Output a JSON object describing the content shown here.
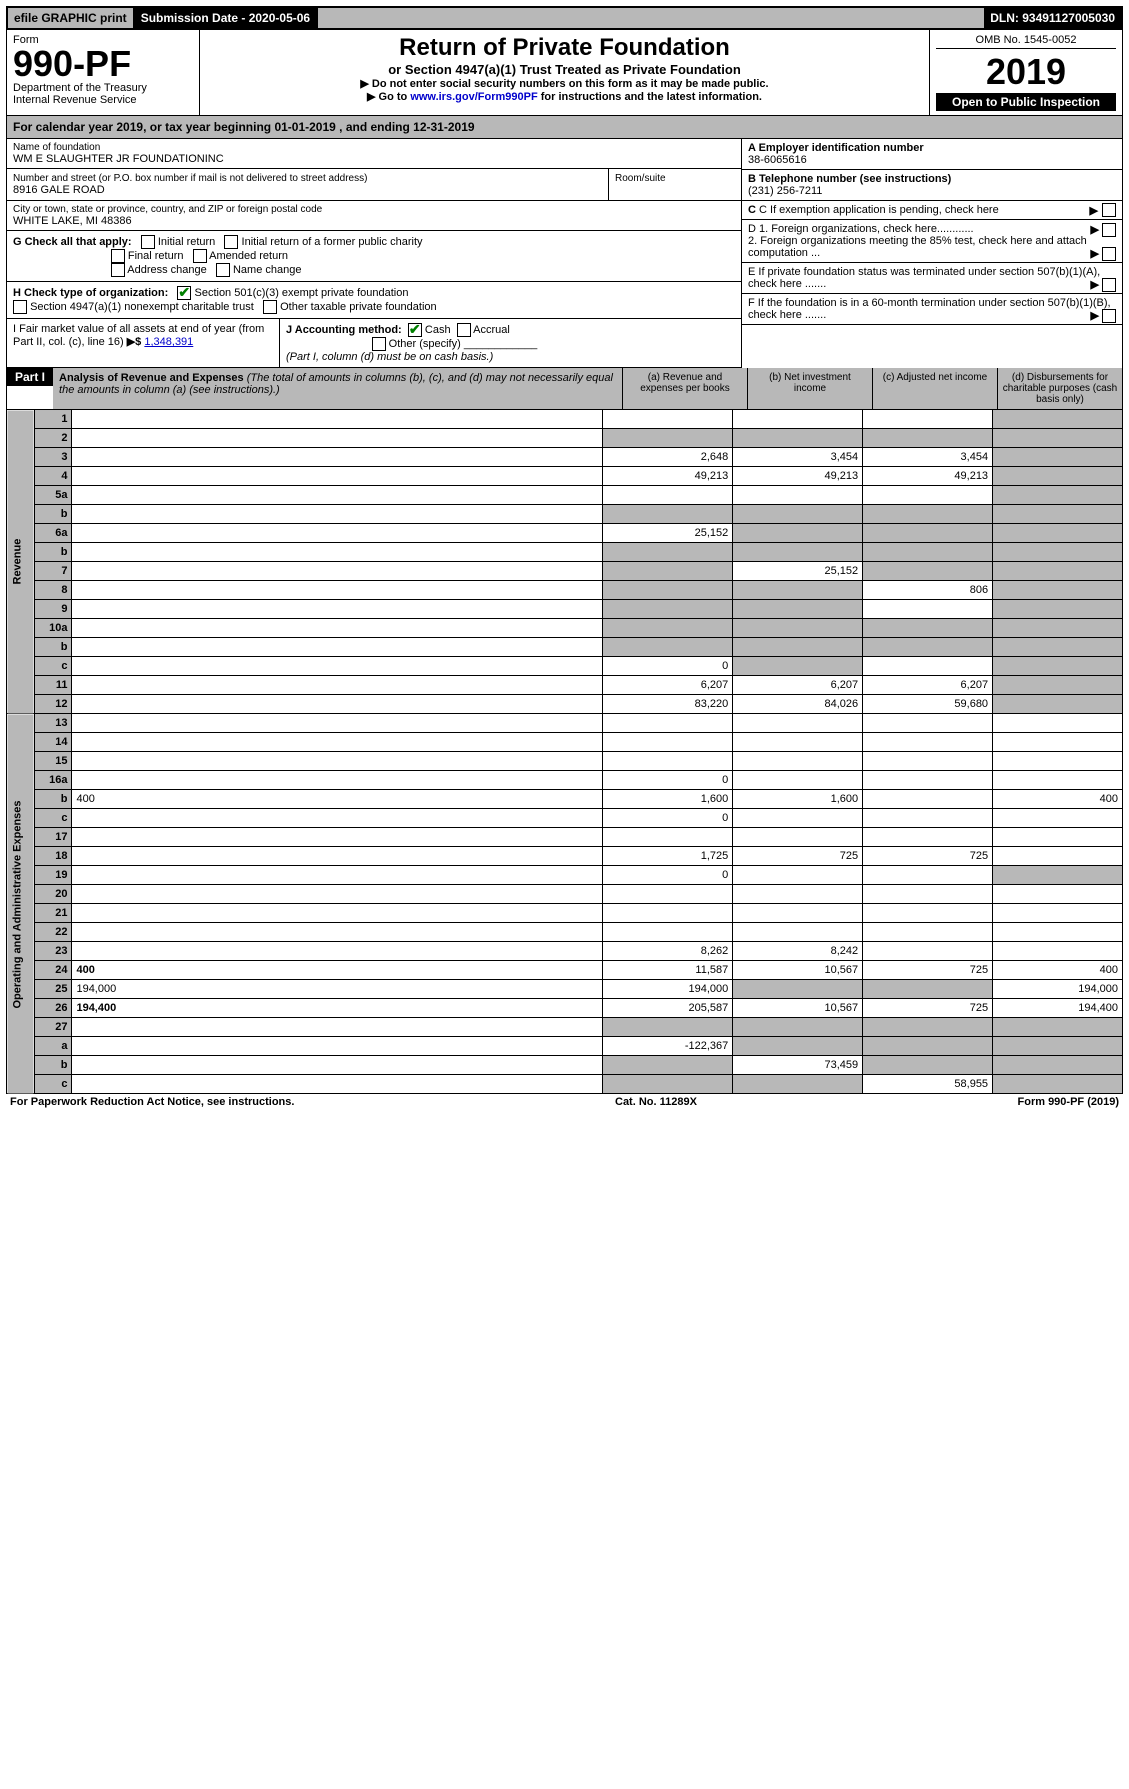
{
  "top": {
    "efile": "efile GRAPHIC print",
    "subdate_label": "Submission Date - 2020-05-06",
    "dln": "DLN: 93491127005030"
  },
  "header": {
    "form_word": "Form",
    "form_no": "990-PF",
    "dept": "Department of the Treasury",
    "irs": "Internal Revenue Service",
    "title": "Return of Private Foundation",
    "subtitle": "or Section 4947(a)(1) Trust Treated as Private Foundation",
    "note1": "▶ Do not enter social security numbers on this form as it may be made public.",
    "note2_pre": "▶ Go to ",
    "note2_link": "www.irs.gov/Form990PF",
    "note2_post": " for instructions and the latest information.",
    "omb": "OMB No. 1545-0052",
    "year": "2019",
    "open": "Open to Public Inspection"
  },
  "cal_year": "For calendar year 2019, or tax year beginning 01-01-2019            , and ending 12-31-2019",
  "info": {
    "name_label": "Name of foundation",
    "name": "WM E SLAUGHTER JR FOUNDATIONINC",
    "addr_label": "Number and street (or P.O. box number if mail is not delivered to street address)",
    "addr": "8916 GALE ROAD",
    "room_label": "Room/suite",
    "city_label": "City or town, state or province, country, and ZIP or foreign postal code",
    "city": "WHITE LAKE, MI  48386",
    "a_label": "A Employer identification number",
    "a_val": "38-6065616",
    "b_label": "B Telephone number (see instructions)",
    "b_val": "(231) 256-7211",
    "c_label": "C If exemption application is pending, check here",
    "d1": "D 1. Foreign organizations, check here............",
    "d2": "2. Foreign organizations meeting the 85% test, check here and attach computation ...",
    "e": "E  If private foundation status was terminated under section 507(b)(1)(A), check here .......",
    "f": "F  If the foundation is in a 60-month termination under section 507(b)(1)(B), check here .......",
    "g_label": "G Check all that apply:",
    "g_opts": [
      "Initial return",
      "Initial return of a former public charity",
      "Final return",
      "Amended return",
      "Address change",
      "Name change"
    ],
    "h_label": "H Check type of organization:",
    "h_opt1": "Section 501(c)(3) exempt private foundation",
    "h_opt2": "Section 4947(a)(1) nonexempt charitable trust",
    "h_opt3": "Other taxable private foundation",
    "i_label": "I Fair market value of all assets at end of year (from Part II, col. (c), line 16)",
    "i_val": "1,348,391",
    "j_label": "J Accounting method:",
    "j_cash": "Cash",
    "j_accrual": "Accrual",
    "j_other": "Other (specify)",
    "j_note": "(Part I, column (d) must be on cash basis.)"
  },
  "part1": {
    "label": "Part I",
    "title": "Analysis of Revenue and Expenses",
    "title_note": "(The total of amounts in columns (b), (c), and (d) may not necessarily equal the amounts in column (a) (see instructions).)",
    "cols": {
      "a": "(a)   Revenue and expenses per books",
      "b": "(b)  Net investment income",
      "c": "(c)  Adjusted net income",
      "d": "(d)  Disbursements for charitable purposes (cash basis only)"
    }
  },
  "sections": {
    "revenue": "Revenue",
    "expenses": "Operating and Administrative Expenses"
  },
  "rows": [
    {
      "n": "1",
      "d": "",
      "a": "",
      "b": "",
      "c": "",
      "shade": [
        "d"
      ]
    },
    {
      "n": "2",
      "d": "",
      "a": "",
      "b": "",
      "c": "",
      "shade": [
        "a",
        "b",
        "c",
        "d"
      ],
      "check": true
    },
    {
      "n": "3",
      "d": "",
      "a": "2,648",
      "b": "3,454",
      "c": "3,454",
      "shade": [
        "d"
      ]
    },
    {
      "n": "4",
      "d": "",
      "a": "49,213",
      "b": "49,213",
      "c": "49,213",
      "shade": [
        "d"
      ]
    },
    {
      "n": "5a",
      "d": "",
      "a": "",
      "b": "",
      "c": "",
      "shade": [
        "d"
      ]
    },
    {
      "n": "b",
      "d": "",
      "a": "",
      "b": "",
      "c": "",
      "shade": [
        "a",
        "b",
        "c",
        "d"
      ]
    },
    {
      "n": "6a",
      "d": "",
      "a": "25,152",
      "b": "",
      "c": "",
      "shade": [
        "b",
        "c",
        "d"
      ]
    },
    {
      "n": "b",
      "d": "",
      "a": "",
      "b": "",
      "c": "",
      "shade": [
        "a",
        "b",
        "c",
        "d"
      ]
    },
    {
      "n": "7",
      "d": "",
      "a": "",
      "b": "25,152",
      "c": "",
      "shade": [
        "a",
        "c",
        "d"
      ]
    },
    {
      "n": "8",
      "d": "",
      "a": "",
      "b": "",
      "c": "806",
      "shade": [
        "a",
        "b",
        "d"
      ]
    },
    {
      "n": "9",
      "d": "",
      "a": "",
      "b": "",
      "c": "",
      "shade": [
        "a",
        "b",
        "d"
      ]
    },
    {
      "n": "10a",
      "d": "",
      "a": "",
      "b": "",
      "c": "",
      "shade": [
        "a",
        "b",
        "c",
        "d"
      ]
    },
    {
      "n": "b",
      "d": "",
      "a": "",
      "b": "",
      "c": "",
      "shade": [
        "a",
        "b",
        "c",
        "d"
      ]
    },
    {
      "n": "c",
      "d": "",
      "a": "0",
      "b": "",
      "c": "",
      "shade": [
        "b",
        "d"
      ]
    },
    {
      "n": "11",
      "d": "",
      "a": "6,207",
      "b": "6,207",
      "c": "6,207",
      "shade": [
        "d"
      ]
    },
    {
      "n": "12",
      "d": "",
      "a": "83,220",
      "b": "84,026",
      "c": "59,680",
      "shade": [
        "d"
      ],
      "bold": true
    }
  ],
  "exp_rows": [
    {
      "n": "13",
      "d": "",
      "a": "",
      "b": "",
      "c": ""
    },
    {
      "n": "14",
      "d": "",
      "a": "",
      "b": "",
      "c": ""
    },
    {
      "n": "15",
      "d": "",
      "a": "",
      "b": "",
      "c": ""
    },
    {
      "n": "16a",
      "d": "",
      "a": "0",
      "b": "",
      "c": ""
    },
    {
      "n": "b",
      "d": "400",
      "a": "1,600",
      "b": "1,600",
      "c": ""
    },
    {
      "n": "c",
      "d": "",
      "a": "0",
      "b": "",
      "c": ""
    },
    {
      "n": "17",
      "d": "",
      "a": "",
      "b": "",
      "c": ""
    },
    {
      "n": "18",
      "d": "",
      "a": "1,725",
      "b": "725",
      "c": "725"
    },
    {
      "n": "19",
      "d": "",
      "a": "0",
      "b": "",
      "c": "",
      "shade": [
        "d"
      ]
    },
    {
      "n": "20",
      "d": "",
      "a": "",
      "b": "",
      "c": ""
    },
    {
      "n": "21",
      "d": "",
      "a": "",
      "b": "",
      "c": ""
    },
    {
      "n": "22",
      "d": "",
      "a": "",
      "b": "",
      "c": ""
    },
    {
      "n": "23",
      "d": "",
      "a": "8,262",
      "b": "8,242",
      "c": ""
    },
    {
      "n": "24",
      "d": "400",
      "a": "11,587",
      "b": "10,567",
      "c": "725",
      "bold": true
    },
    {
      "n": "25",
      "d": "194,000",
      "a": "194,000",
      "b": "",
      "c": "",
      "shade": [
        "b",
        "c"
      ]
    },
    {
      "n": "26",
      "d": "194,400",
      "a": "205,587",
      "b": "10,567",
      "c": "725",
      "bold": true
    },
    {
      "n": "27",
      "d": "",
      "a": "",
      "b": "",
      "c": "",
      "shade": [
        "a",
        "b",
        "c",
        "d"
      ]
    },
    {
      "n": "a",
      "d": "",
      "a": "-122,367",
      "b": "",
      "c": "",
      "shade": [
        "b",
        "c",
        "d"
      ],
      "bold": true
    },
    {
      "n": "b",
      "d": "",
      "a": "",
      "b": "73,459",
      "c": "",
      "shade": [
        "a",
        "c",
        "d"
      ],
      "bold": true
    },
    {
      "n": "c",
      "d": "",
      "a": "",
      "b": "",
      "c": "58,955",
      "shade": [
        "a",
        "b",
        "d"
      ],
      "bold": true
    }
  ],
  "footer": {
    "left": "For Paperwork Reduction Act Notice, see instructions.",
    "mid": "Cat. No. 11289X",
    "right": "Form 990-PF (2019)"
  }
}
